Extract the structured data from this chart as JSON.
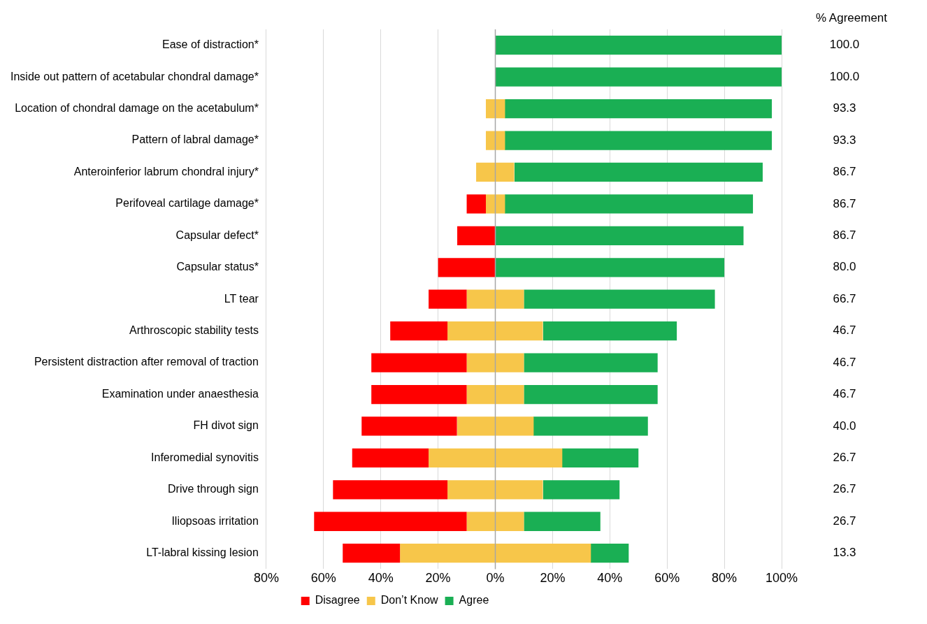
{
  "chart_data": {
    "type": "bar",
    "orientation": "horizontal",
    "categories": [
      "Ease of distraction*",
      "Inside out pattern of acetabular chondral damage*",
      "Location of chondral damage on the acetabulum*",
      "Pattern of labral damage*",
      "Anteroinferior labrum chondral injury*",
      "Perifoveal cartilage damage*",
      "Capsular defect*",
      "Capsular status*",
      "LT tear",
      "Arthroscopic stability tests",
      "Persistent distraction after removal of traction",
      "Examination under anaesthesia",
      "FH divot sign",
      "Inferomedial synovitis",
      "Drive through sign",
      "Iliopsoas irritation",
      "LT-labral kissing lesion"
    ],
    "series": [
      {
        "name": "Disagree",
        "color": "#ff0000",
        "values": [
          null,
          null,
          null,
          null,
          null,
          6.7,
          13.3,
          20,
          13.3,
          20,
          33.3,
          33.3,
          33.3,
          26.7,
          40,
          53.3,
          20
        ],
        "base": [
          null,
          null,
          null,
          null,
          null,
          -10,
          -13.3,
          -20,
          -23.3,
          -36.7,
          -43.3,
          -43.3,
          -46.7,
          -50,
          -56.7,
          -63.3,
          -53.3
        ]
      },
      {
        "name": "Don’t Know",
        "color": "#f7c64a",
        "values": [
          null,
          null,
          6.7,
          6.7,
          13.3,
          6.7,
          null,
          null,
          20,
          33.3,
          20,
          20,
          26.7,
          46.7,
          33.3,
          20,
          66.7
        ],
        "base": [
          null,
          null,
          -3.3,
          -3.3,
          -6.7,
          -3.3,
          null,
          null,
          -10,
          -16.7,
          -10,
          -10,
          -13.3,
          -23.3,
          -16.7,
          -10,
          -33.3
        ]
      },
      {
        "name": "Agree",
        "color": "#1aaf54",
        "values": [
          100,
          100,
          93.3,
          93.3,
          86.7,
          86.7,
          86.7,
          80,
          66.7,
          46.7,
          46.7,
          46.7,
          40,
          26.7,
          26.7,
          26.7,
          13.3
        ],
        "base": [
          0,
          0,
          3.3,
          3.3,
          6.7,
          3.3,
          0,
          0,
          10,
          16.7,
          10,
          10,
          13.3,
          23.3,
          16.7,
          10,
          33.3
        ],
        "value_labels": [
          "100.0",
          "100.0",
          "93.3",
          "93.3",
          "86.7",
          "86.7",
          "86.7",
          "80.0",
          "66.7",
          "46.7",
          "46.7",
          "46.7",
          "40.0",
          "26.7",
          "26.7",
          "26.7",
          "13.3"
        ]
      }
    ],
    "xlim": [
      -80,
      100
    ],
    "xticks": [
      {
        "value": -80,
        "label": "80%"
      },
      {
        "value": -60,
        "label": "60%"
      },
      {
        "value": -40,
        "label": "40%"
      },
      {
        "value": -20,
        "label": "20%"
      },
      {
        "value": 0,
        "label": "0%"
      },
      {
        "value": 20,
        "label": "20%"
      },
      {
        "value": 40,
        "label": "40%"
      },
      {
        "value": 60,
        "label": "60%"
      },
      {
        "value": 80,
        "label": "80%"
      },
      {
        "value": 100,
        "label": "100%"
      }
    ],
    "grid": "x",
    "legend": "bottom",
    "ref_lines": [
      {
        "axis": "x",
        "value": 0,
        "color": "#a6a6a6"
      }
    ],
    "annotations": [
      "% Agreement"
    ]
  }
}
